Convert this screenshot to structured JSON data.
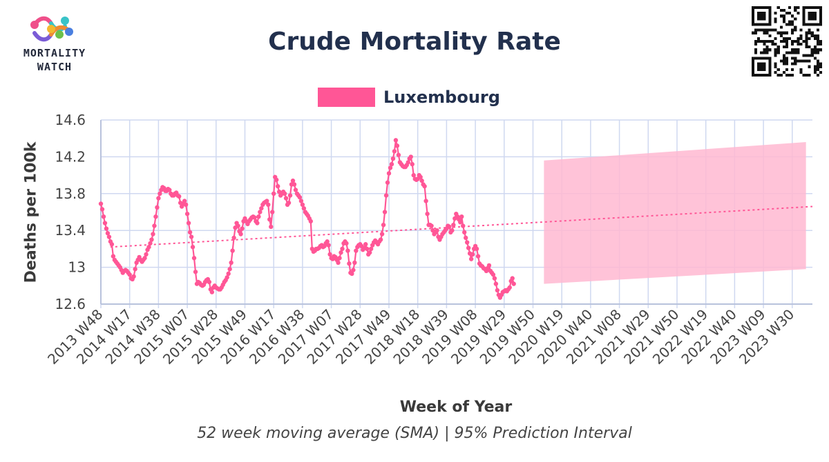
{
  "brand": {
    "line1": "MORTALITY",
    "line2": "WATCH"
  },
  "header": {
    "title": "Crude Mortality Rate"
  },
  "legend": {
    "label": "Luxembourg",
    "color": "#ff5696"
  },
  "footer": {
    "subtitle": "52 week moving average (SMA) | 95% Prediction Interval"
  },
  "icons": {
    "logo": "mortality-watch-logo-icon",
    "qr": "qr-code-icon"
  },
  "chart_data": {
    "type": "line",
    "title": "Crude Mortality Rate",
    "xlabel": "Week of Year",
    "ylabel": "Deaths per 100k",
    "ylim": [
      12.6,
      14.6
    ],
    "yticks": [
      12.6,
      13,
      13.4,
      13.8,
      14.2,
      14.6
    ],
    "ytick_labels": [
      "12.6",
      "13",
      "13.4",
      "13.8",
      "14.2",
      "14.6"
    ],
    "xtick_labels": [
      "2013 W48",
      "2014 W17",
      "2014 W38",
      "2015 W07",
      "2015 W28",
      "2015 W49",
      "2016 W17",
      "2016 W38",
      "2017 W07",
      "2017 W28",
      "2017 W49",
      "2018 W18",
      "2018 W39",
      "2019 W08",
      "2019 W29",
      "2019 W50",
      "2020 W19",
      "2020 W40",
      "2021 W08",
      "2021 W29",
      "2021 W50",
      "2022 W19",
      "2022 W40",
      "2023 W09",
      "2023 W30"
    ],
    "weeks_between_ticks": 21,
    "grid": true,
    "legend_position": "top-center",
    "series": [
      {
        "name": "Luxembourg",
        "color": "#ff5696",
        "start_week": "2013 W48",
        "values": [
          13.69,
          13.63,
          13.55,
          13.48,
          13.42,
          13.37,
          13.33,
          13.28,
          13.25,
          13.12,
          13.08,
          13.06,
          13.04,
          13.02,
          13.0,
          12.97,
          12.94,
          12.96,
          12.97,
          12.96,
          12.94,
          12.92,
          12.88,
          12.87,
          12.9,
          12.98,
          13.05,
          13.08,
          13.11,
          13.08,
          13.06,
          13.08,
          13.1,
          13.14,
          13.19,
          13.22,
          13.26,
          13.3,
          13.36,
          13.45,
          13.55,
          13.65,
          13.75,
          13.8,
          13.84,
          13.87,
          13.86,
          13.83,
          13.83,
          13.85,
          13.84,
          13.8,
          13.78,
          13.78,
          13.8,
          13.81,
          13.78,
          13.77,
          13.7,
          13.66,
          13.69,
          13.72,
          13.68,
          13.58,
          13.48,
          13.38,
          13.33,
          13.22,
          13.1,
          12.95,
          12.82,
          12.84,
          12.83,
          12.81,
          12.8,
          12.81,
          12.84,
          12.86,
          12.87,
          12.84,
          12.76,
          12.73,
          12.78,
          12.8,
          12.78,
          12.77,
          12.76,
          12.76,
          12.78,
          12.81,
          12.84,
          12.86,
          12.89,
          12.93,
          12.98,
          13.05,
          13.18,
          13.32,
          13.43,
          13.48,
          13.45,
          13.39,
          13.36,
          13.42,
          13.5,
          13.53,
          13.5,
          13.47,
          13.5,
          13.52,
          13.54,
          13.55,
          13.54,
          13.5,
          13.48,
          13.55,
          13.6,
          13.64,
          13.68,
          13.7,
          13.71,
          13.72,
          13.68,
          13.52,
          13.44,
          13.6,
          13.8,
          13.98,
          13.95,
          13.88,
          13.82,
          13.78,
          13.8,
          13.82,
          13.8,
          13.75,
          13.68,
          13.7,
          13.78,
          13.9,
          13.94,
          13.9,
          13.84,
          13.8,
          13.78,
          13.76,
          13.72,
          13.68,
          13.64,
          13.6,
          13.58,
          13.56,
          13.53,
          13.5,
          13.2,
          13.17,
          13.18,
          13.2,
          13.2,
          13.21,
          13.23,
          13.24,
          13.22,
          13.23,
          13.26,
          13.28,
          13.24,
          13.14,
          13.1,
          13.09,
          13.12,
          13.11,
          13.08,
          13.05,
          13.1,
          13.16,
          13.2,
          13.26,
          13.28,
          13.26,
          13.18,
          13.04,
          12.94,
          12.93,
          12.97,
          13.05,
          13.18,
          13.22,
          13.24,
          13.25,
          13.23,
          13.19,
          13.21,
          13.25,
          13.2,
          13.14,
          13.16,
          13.2,
          13.24,
          13.27,
          13.29,
          13.27,
          13.25,
          13.28,
          13.3,
          13.36,
          13.46,
          13.6,
          13.78,
          13.92,
          14.02,
          14.08,
          14.12,
          14.18,
          14.26,
          14.38,
          14.32,
          14.22,
          14.14,
          14.12,
          14.1,
          14.09,
          14.09,
          14.11,
          14.14,
          14.18,
          14.2,
          14.12,
          14.0,
          13.96,
          13.95,
          13.96,
          14.0,
          13.98,
          13.94,
          13.9,
          13.88,
          13.72,
          13.58,
          13.46,
          13.46,
          13.45,
          13.4,
          13.36,
          13.38,
          13.4,
          13.33,
          13.3,
          13.33,
          13.36,
          13.38,
          13.4,
          13.42,
          13.45,
          13.44,
          13.38,
          13.4,
          13.46,
          13.53,
          13.58,
          13.55,
          13.52,
          13.49,
          13.55,
          13.45,
          13.38,
          13.32,
          13.27,
          13.21,
          13.15,
          13.09,
          13.14,
          13.2,
          13.23,
          13.2,
          13.12,
          13.04,
          13.02,
          13.01,
          12.99,
          12.98,
          12.96,
          12.99,
          13.02,
          12.96,
          12.94,
          12.92,
          12.88,
          12.82,
          12.75,
          12.7,
          12.67,
          12.7,
          12.73,
          12.74,
          12.75,
          12.74,
          12.76,
          12.78,
          12.85,
          12.88,
          12.82
        ]
      },
      {
        "name": "Trend",
        "color": "#ff5696",
        "dashed": true,
        "start_week": "2014 W03",
        "values_at_ends": [
          13.22,
          13.66
        ]
      }
    ],
    "prediction_interval": {
      "label": "95% Prediction Interval",
      "color": "#ffb8d1",
      "start_week": "2020 W07",
      "end_week": "2023 W42",
      "lower": [
        12.82,
        12.98
      ],
      "upper": [
        14.16,
        14.36
      ]
    }
  }
}
